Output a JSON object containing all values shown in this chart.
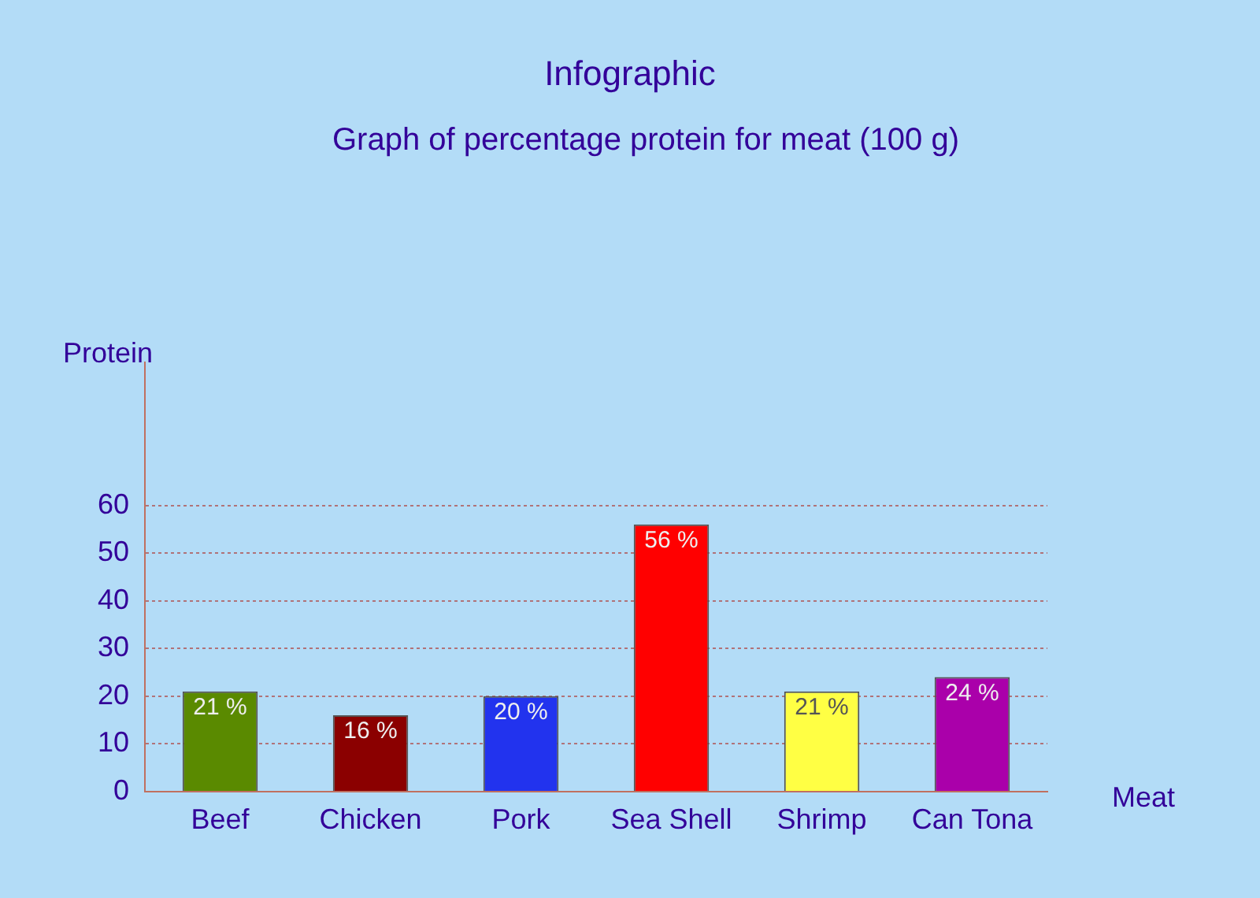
{
  "chart_data": {
    "type": "bar",
    "title": "Infographic",
    "subtitle": "Graph of percentage protein for meat (100 g)",
    "xlabel": "Meat",
    "ylabel": "Protein",
    "categories": [
      "Beef",
      "Chicken",
      "Pork",
      "Sea Shell",
      "Shrimp",
      "Can Tona"
    ],
    "values": [
      21,
      16,
      20,
      56,
      21,
      24
    ],
    "colors": [
      "#5a8a00",
      "#8b0000",
      "#2233ee",
      "#ff0000",
      "#ffff44",
      "#aa00aa"
    ],
    "value_labels": [
      "21 %",
      "16 %",
      "20 %",
      "56 %",
      "21 %",
      "24 %"
    ],
    "ylim": [
      0,
      90
    ],
    "yticks": [
      0,
      10,
      20,
      30,
      40,
      50,
      60
    ],
    "grid": "y",
    "legend": false
  }
}
